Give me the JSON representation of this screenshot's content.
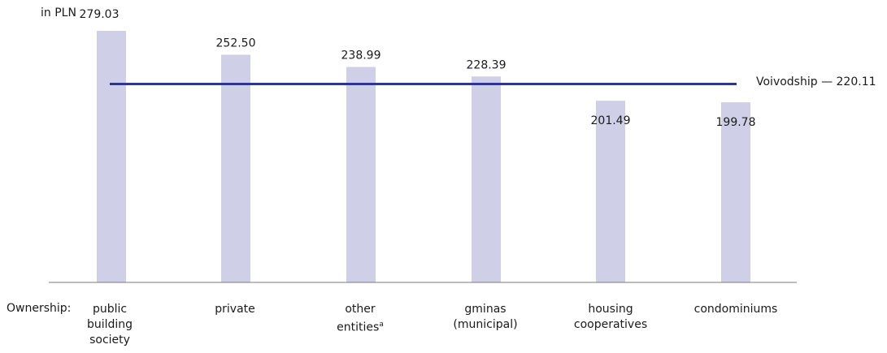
{
  "chart_data": {
    "type": "bar",
    "unit_label": "in PLN",
    "xlabel": "Ownership:",
    "categories": [
      "public building society",
      "private",
      "other entitiesᵃ",
      "gminas (municipal)",
      "housing cooperatives",
      "condominiums"
    ],
    "values": [
      279.03,
      252.5,
      238.99,
      228.39,
      201.49,
      199.78
    ],
    "value_labels": [
      "279.03",
      "252.50",
      "238.99",
      "228.39",
      "201.49",
      "199.78"
    ],
    "reference_line": {
      "label": "Voivodship — 220.11",
      "value": 220.11
    },
    "ylim": [
      0,
      285
    ],
    "colors": {
      "bar": "#cfd0e8",
      "reference_line": "#283990",
      "axis": "#7a7a7a"
    },
    "grid": false
  }
}
